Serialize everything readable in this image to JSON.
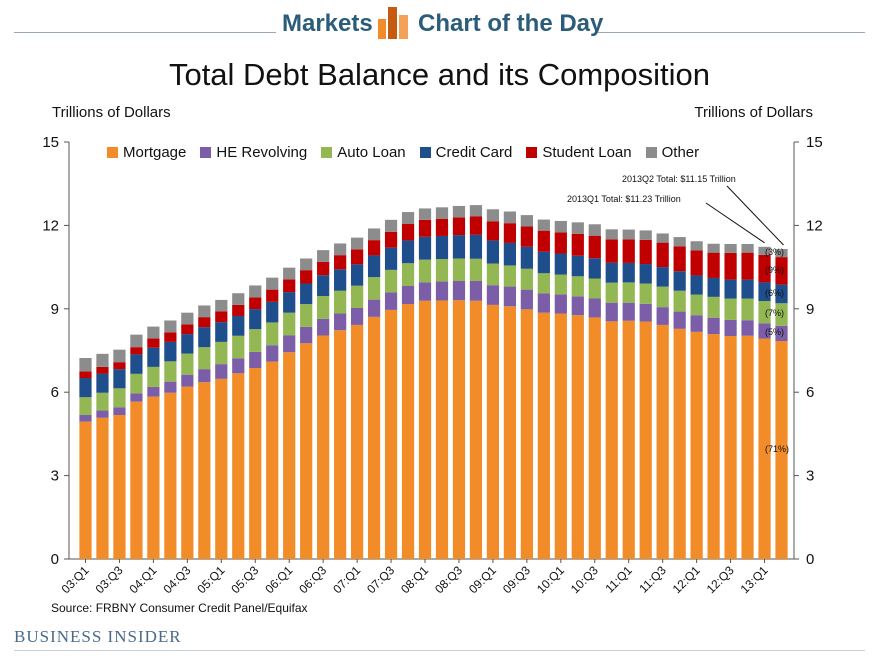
{
  "header": {
    "left_label": "Markets",
    "right_label": "Chart of the Day",
    "colors": {
      "brand": "#2b5d7a",
      "logo_orange": "#f28c28",
      "logo_dark": "#c55a11"
    }
  },
  "footer": {
    "source": "Source: FRBNY Consumer Credit Panel/Equifax",
    "publisher": "BUSINESS INSIDER"
  },
  "chart_data": {
    "type": "bar",
    "stacked": true,
    "title": "Total Debt Balance and its Composition",
    "ylabel_left": "Trillions of Dollars",
    "ylabel_right": "Trillions of Dollars",
    "ylim": [
      0,
      15
    ],
    "yticks": [
      0,
      3,
      6,
      9,
      12,
      15
    ],
    "categories": [
      "03:Q1",
      "03:Q2",
      "03:Q3",
      "03:Q4",
      "04:Q1",
      "04:Q2",
      "04:Q3",
      "04:Q4",
      "05:Q1",
      "05:Q2",
      "05:Q3",
      "05:Q4",
      "06:Q1",
      "06:Q2",
      "06:Q3",
      "06:Q4",
      "07:Q1",
      "07:Q2",
      "07:Q3",
      "07:Q4",
      "08:Q1",
      "08:Q2",
      "08:Q3",
      "08:Q4",
      "09:Q1",
      "09:Q2",
      "09:Q3",
      "09:Q4",
      "10:Q1",
      "10:Q2",
      "10:Q3",
      "10:Q4",
      "11:Q1",
      "11:Q2",
      "11:Q3",
      "11:Q4",
      "12:Q1",
      "12:Q2",
      "12:Q3",
      "12:Q4",
      "13:Q1",
      "13:Q2"
    ],
    "tick_labels": [
      "03:Q1",
      "03:Q3",
      "04:Q1",
      "04:Q3",
      "05:Q1",
      "05:Q3",
      "06:Q1",
      "06:Q3",
      "07:Q1",
      "07:Q3",
      "08:Q1",
      "08:Q3",
      "09:Q1",
      "09:Q3",
      "10:Q1",
      "10:Q3",
      "11:Q1",
      "11:Q3",
      "12:Q1",
      "12:Q3",
      "13:Q1"
    ],
    "series": [
      {
        "name": "Mortgage",
        "color": "#f28c28",
        "values": [
          4.94,
          5.08,
          5.18,
          5.66,
          5.84,
          5.98,
          6.2,
          6.36,
          6.48,
          6.68,
          6.87,
          7.1,
          7.44,
          7.76,
          8.04,
          8.23,
          8.42,
          8.71,
          8.96,
          9.17,
          9.29,
          9.3,
          9.31,
          9.29,
          9.14,
          9.09,
          8.98,
          8.86,
          8.83,
          8.77,
          8.69,
          8.55,
          8.57,
          8.54,
          8.42,
          8.28,
          8.17,
          8.09,
          8.02,
          8.03,
          7.93,
          7.84
        ]
      },
      {
        "name": "HE Revolving",
        "color": "#7b5ea7",
        "values": [
          0.24,
          0.26,
          0.28,
          0.3,
          0.35,
          0.4,
          0.43,
          0.47,
          0.53,
          0.54,
          0.58,
          0.59,
          0.6,
          0.59,
          0.6,
          0.6,
          0.61,
          0.62,
          0.63,
          0.65,
          0.66,
          0.68,
          0.69,
          0.71,
          0.71,
          0.71,
          0.71,
          0.7,
          0.69,
          0.68,
          0.68,
          0.67,
          0.65,
          0.64,
          0.64,
          0.62,
          0.6,
          0.59,
          0.58,
          0.56,
          0.55,
          0.55
        ]
      },
      {
        "name": "Auto Loan",
        "color": "#92b753",
        "values": [
          0.64,
          0.64,
          0.68,
          0.7,
          0.72,
          0.73,
          0.76,
          0.79,
          0.8,
          0.81,
          0.82,
          0.82,
          0.82,
          0.82,
          0.82,
          0.82,
          0.8,
          0.81,
          0.81,
          0.82,
          0.82,
          0.81,
          0.81,
          0.8,
          0.78,
          0.76,
          0.75,
          0.72,
          0.71,
          0.72,
          0.72,
          0.72,
          0.73,
          0.73,
          0.74,
          0.75,
          0.74,
          0.75,
          0.77,
          0.78,
          0.8,
          0.81
        ]
      },
      {
        "name": "Credit Card",
        "color": "#1f4e8c",
        "values": [
          0.69,
          0.69,
          0.69,
          0.7,
          0.69,
          0.7,
          0.7,
          0.72,
          0.71,
          0.71,
          0.72,
          0.74,
          0.74,
          0.74,
          0.75,
          0.77,
          0.77,
          0.78,
          0.8,
          0.82,
          0.82,
          0.83,
          0.84,
          0.86,
          0.83,
          0.81,
          0.79,
          0.77,
          0.76,
          0.74,
          0.73,
          0.72,
          0.7,
          0.7,
          0.7,
          0.7,
          0.69,
          0.68,
          0.68,
          0.68,
          0.67,
          0.67
        ]
      },
      {
        "name": "Student Loan",
        "color": "#c00000",
        "values": [
          0.24,
          0.24,
          0.25,
          0.26,
          0.33,
          0.34,
          0.35,
          0.36,
          0.39,
          0.4,
          0.42,
          0.44,
          0.46,
          0.48,
          0.48,
          0.51,
          0.54,
          0.55,
          0.57,
          0.59,
          0.61,
          0.61,
          0.64,
          0.66,
          0.69,
          0.71,
          0.73,
          0.76,
          0.76,
          0.79,
          0.81,
          0.84,
          0.85,
          0.87,
          0.88,
          0.9,
          0.9,
          0.91,
          0.96,
          0.97,
          0.99,
          0.99
        ]
      },
      {
        "name": "Other",
        "color": "#8c8c8c",
        "values": [
          0.48,
          0.47,
          0.45,
          0.45,
          0.43,
          0.43,
          0.42,
          0.42,
          0.41,
          0.42,
          0.43,
          0.43,
          0.42,
          0.42,
          0.42,
          0.42,
          0.42,
          0.42,
          0.43,
          0.43,
          0.41,
          0.42,
          0.41,
          0.41,
          0.43,
          0.42,
          0.41,
          0.4,
          0.41,
          0.41,
          0.41,
          0.36,
          0.35,
          0.34,
          0.33,
          0.33,
          0.33,
          0.32,
          0.32,
          0.31,
          0.29,
          0.29
        ]
      }
    ],
    "annotations": [
      {
        "text": "2013Q2 Total: $11.15 Trillion",
        "category": "13:Q2"
      },
      {
        "text": "2013Q1 Total: $11.23 Trillion",
        "category": "13:Q1"
      }
    ],
    "composition_labels": [
      {
        "series": "Other",
        "text": "(3%)"
      },
      {
        "series": "Student Loan",
        "text": "(9%)"
      },
      {
        "series": "Credit Card",
        "text": "(6%)"
      },
      {
        "series": "Auto Loan",
        "text": "(7%)"
      },
      {
        "series": "HE Revolving",
        "text": "(5%)"
      },
      {
        "series": "Mortgage",
        "text": "(71%)"
      }
    ],
    "legend_position": "top",
    "grid": false
  }
}
